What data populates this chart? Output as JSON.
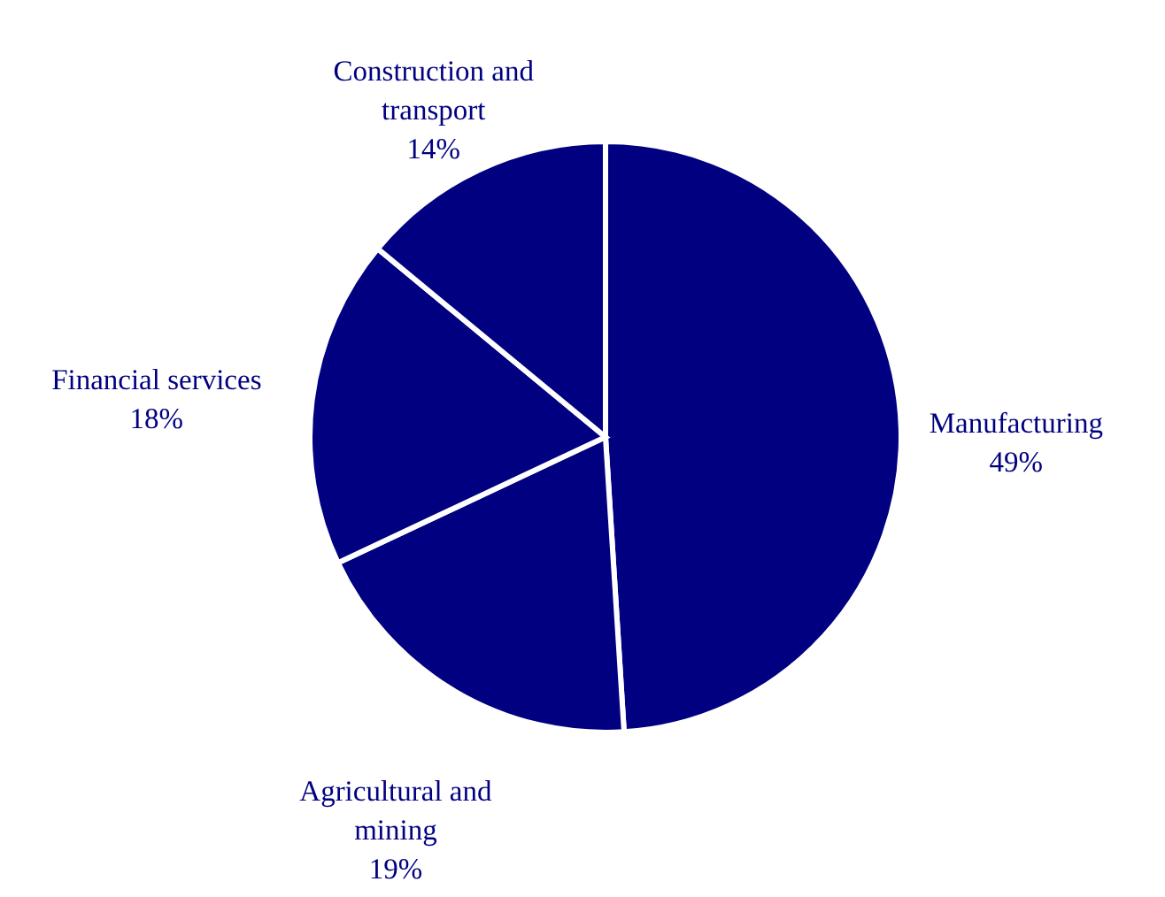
{
  "chart_data": {
    "type": "pie",
    "categories": [
      "Manufacturing",
      "Agricultural and mining",
      "Financial services",
      "Construction and transport"
    ],
    "values": [
      49,
      19,
      18,
      14
    ],
    "value_labels": [
      "49%",
      "19%",
      "18%",
      "14%"
    ],
    "colors": [
      "#000080",
      "#000080",
      "#000080",
      "#000080"
    ]
  }
}
